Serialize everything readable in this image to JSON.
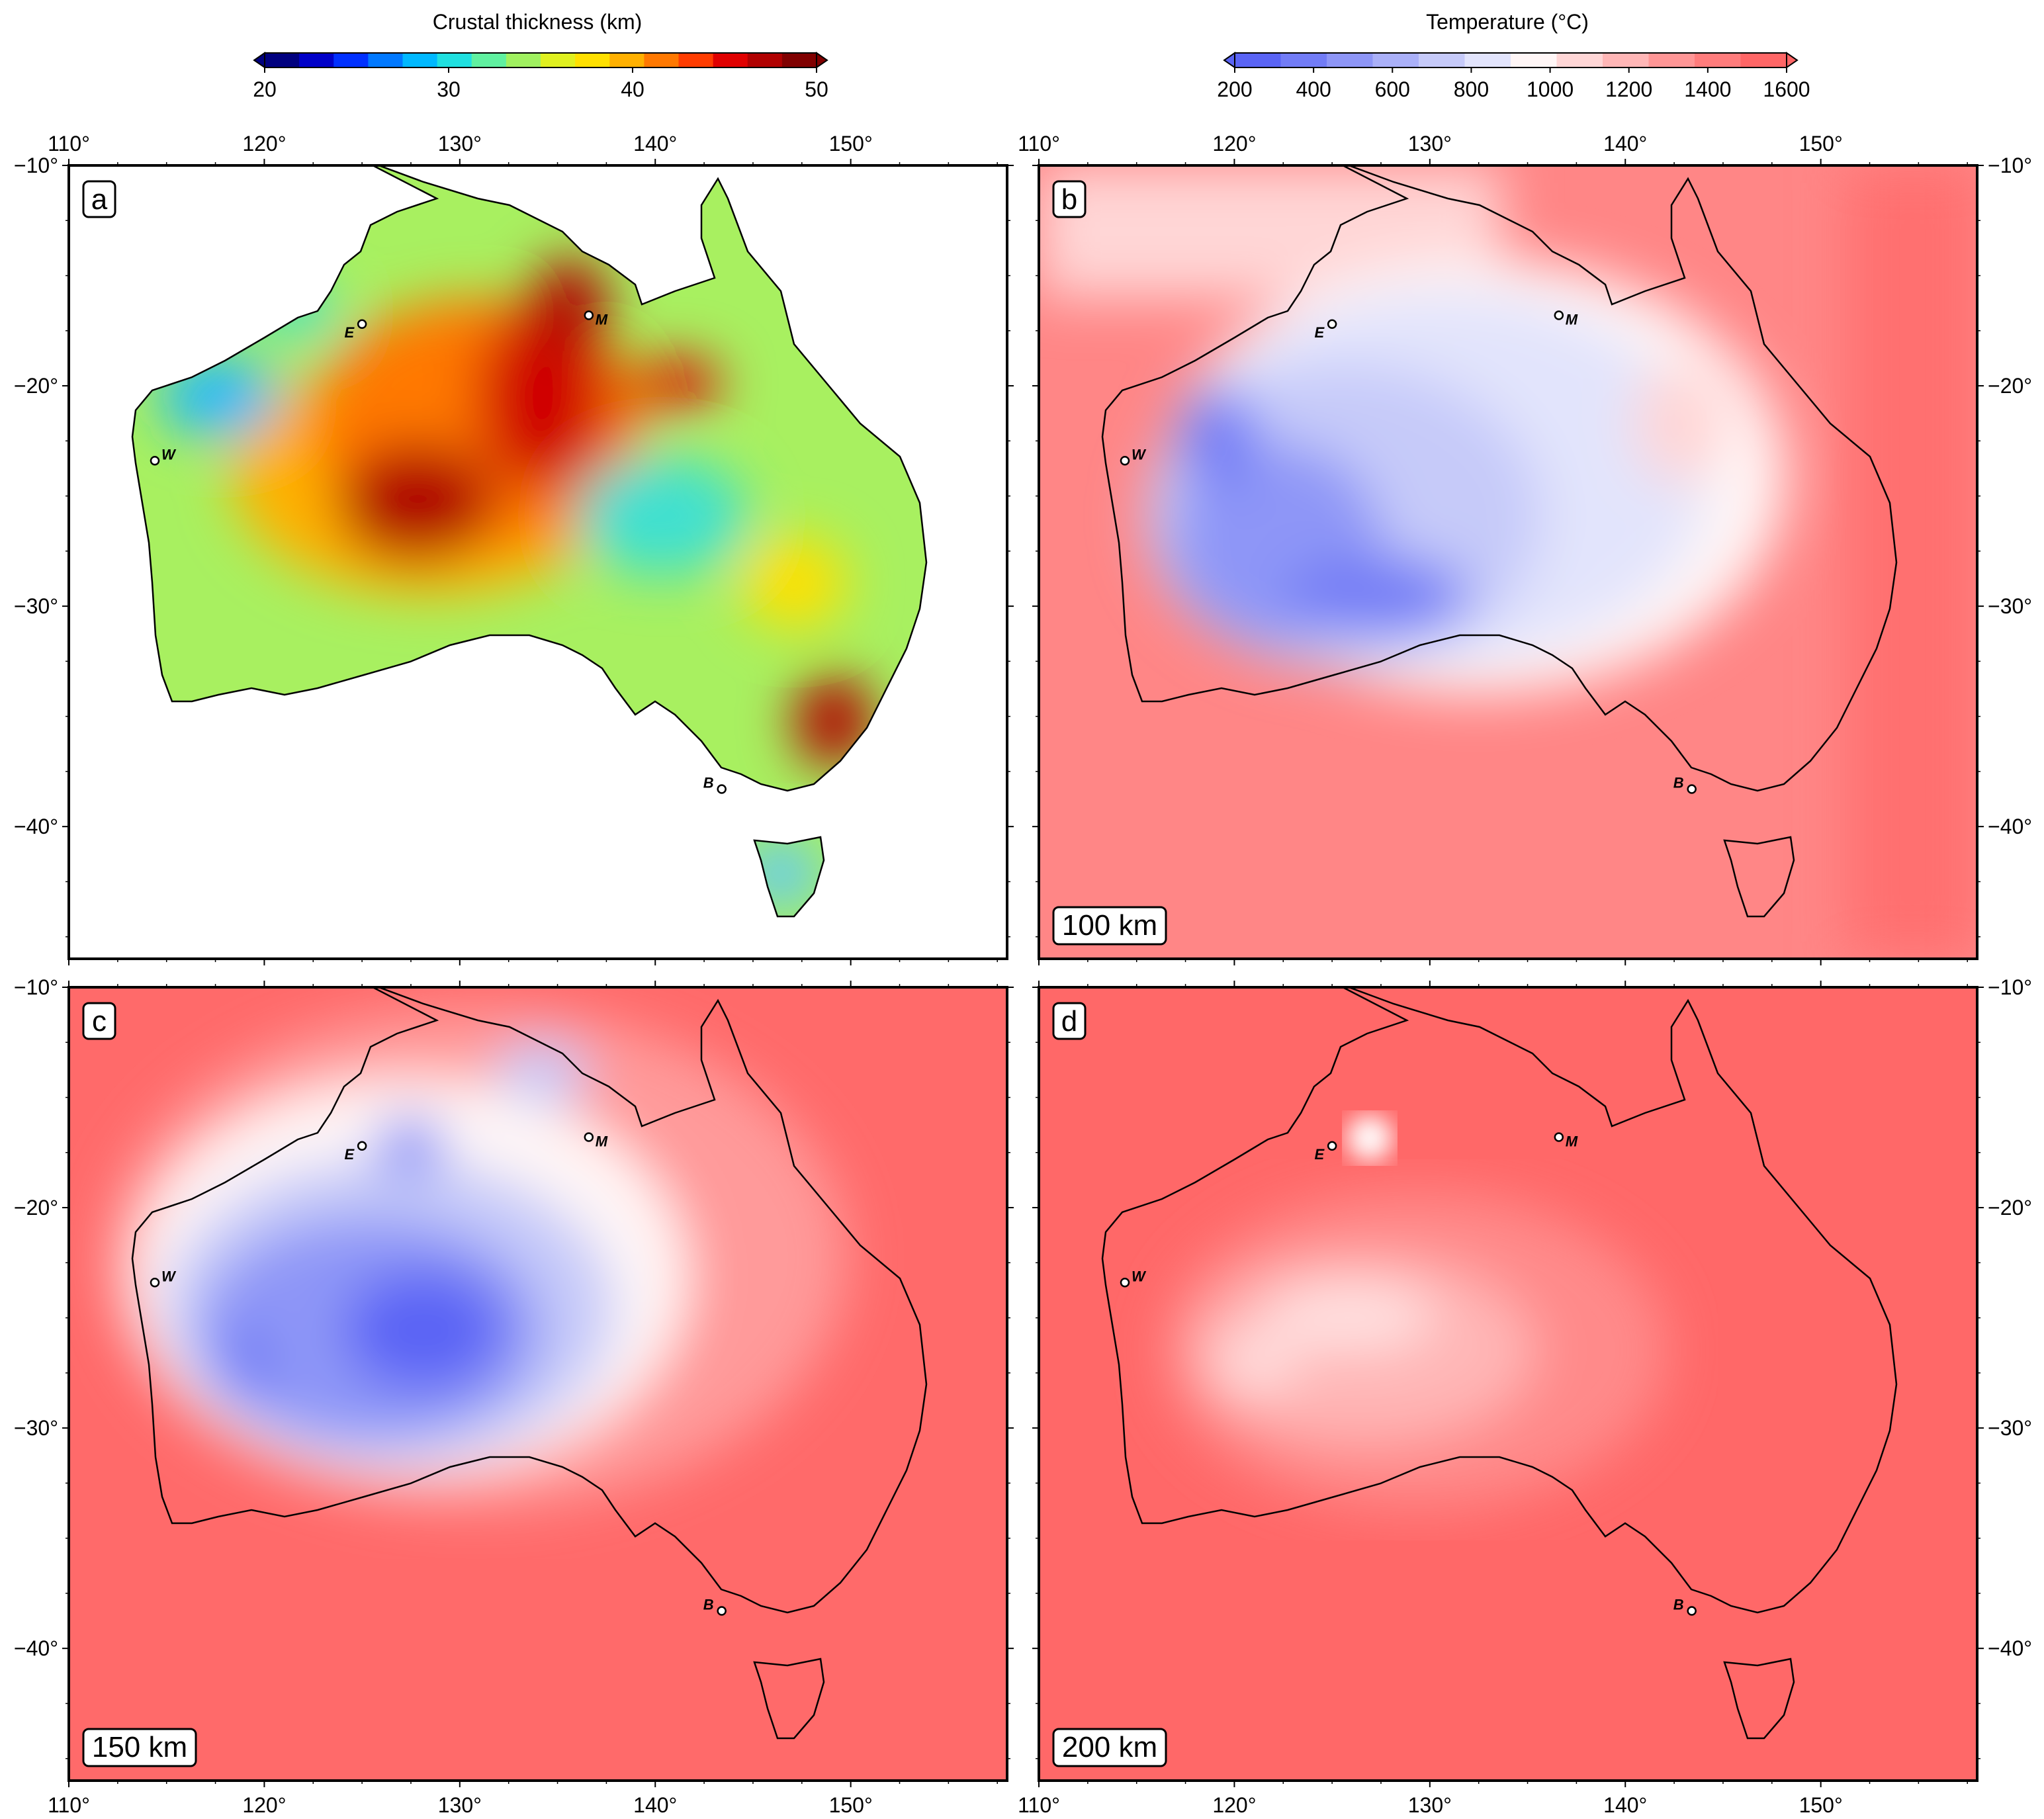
{
  "colorbars": {
    "crustal": {
      "title": "Crustal thickness (km)",
      "ticks": [
        "20",
        "30",
        "40",
        "50"
      ],
      "colors": [
        "#00007f",
        "#0000c8",
        "#0030ff",
        "#0078ff",
        "#00b8ff",
        "#20e0e0",
        "#60f0a0",
        "#a0f060",
        "#e0f020",
        "#ffe000",
        "#ffb000",
        "#ff7800",
        "#ff3c00",
        "#e00000",
        "#b00000",
        "#800000"
      ]
    },
    "temperature": {
      "title": "Temperature (°C)",
      "ticks": [
        "200",
        "400",
        "600",
        "800",
        "1000",
        "1200",
        "1400",
        "1600"
      ],
      "colors": [
        "#5a64f5",
        "#727cf6",
        "#8e96f7",
        "#aab0f8",
        "#c6caf9",
        "#e2e4fc",
        "#fff6f6",
        "#ffd6d6",
        "#ffb6b6",
        "#ff9696",
        "#ff7c7c",
        "#ff6666"
      ]
    }
  },
  "axes": {
    "lon_ticks": [
      "110°",
      "120°",
      "130°",
      "140°",
      "150°"
    ],
    "lat_ticks": [
      "−10°",
      "−20°",
      "−30°",
      "−40°"
    ],
    "lon_range": [
      110,
      158
    ],
    "lat_range": [
      -10,
      -46
    ]
  },
  "panels": [
    {
      "label": "a",
      "depth": ""
    },
    {
      "label": "b",
      "depth": "100 km"
    },
    {
      "label": "c",
      "depth": "150 km"
    },
    {
      "label": "d",
      "depth": "200 km"
    }
  ],
  "stations": [
    {
      "code": "E",
      "lon": 125.0,
      "lat": -17.2
    },
    {
      "code": "M",
      "lon": 136.6,
      "lat": -16.8
    },
    {
      "code": "W",
      "lon": 114.4,
      "lat": -23.4
    },
    {
      "code": "B",
      "lon": 143.4,
      "lat": -38.3
    }
  ],
  "map_colors": {
    "crust_default": "#a8f060",
    "ocean_hot": "#ff6666",
    "coastline": "#000000"
  }
}
